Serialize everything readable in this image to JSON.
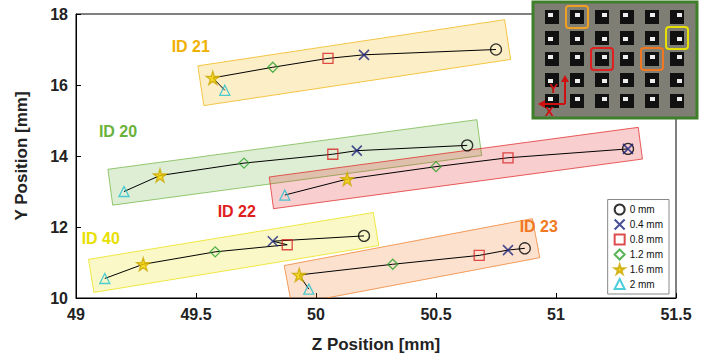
{
  "chart_data": {
    "type": "scatter",
    "x_label": "Z Position [mm]",
    "y_label": "Y Position [mm]",
    "xlim": [
      49,
      51.5
    ],
    "xticks": [
      49,
      49.5,
      50,
      50.5,
      51,
      51.5
    ],
    "ylim": [
      10,
      18
    ],
    "yticks": [
      10,
      12,
      14,
      16,
      18
    ],
    "grid": false,
    "legend": "lower right",
    "markers": [
      {
        "name": "0 mm",
        "marker": "circle",
        "color": "#000000"
      },
      {
        "name": "0.4 mm",
        "marker": "x",
        "color": "#1a237e"
      },
      {
        "name": "0.8 mm",
        "marker": "square",
        "color": "#d62020"
      },
      {
        "name": "1.2 mm",
        "marker": "diamond",
        "color": "#2ca02c"
      },
      {
        "name": "1.6 mm",
        "marker": "star",
        "color": "#f5d300"
      },
      {
        "name": "2 mm",
        "marker": "triangle",
        "color": "#20c0d0"
      }
    ],
    "series": [
      {
        "name": "ID 21",
        "color": "#f0b000",
        "x": [
          50.75,
          50.2,
          50.05,
          49.82,
          49.57,
          49.62
        ],
        "y": [
          17.0,
          16.85,
          16.75,
          16.5,
          16.2,
          15.85
        ]
      },
      {
        "name": "ID 20",
        "color": "#6ab23c",
        "x": [
          50.63,
          50.17,
          50.07,
          49.7,
          49.35,
          49.2
        ],
        "y": [
          14.3,
          14.15,
          14.05,
          13.8,
          13.45,
          13.0
        ]
      },
      {
        "name": "ID 22",
        "color": "#e02020",
        "x": [
          51.3,
          51.3,
          50.8,
          50.5,
          50.13,
          49.87
        ],
        "y": [
          14.2,
          14.2,
          13.95,
          13.7,
          13.35,
          12.9
        ]
      },
      {
        "name": "ID 40",
        "color": "#e8e000",
        "x": [
          50.2,
          49.82,
          49.88,
          49.58,
          49.28,
          49.12
        ],
        "y": [
          11.75,
          11.6,
          11.5,
          11.3,
          10.95,
          10.55
        ]
      },
      {
        "name": "ID 23",
        "color": "#f07820",
        "x": [
          50.87,
          50.8,
          50.68,
          50.32,
          49.93,
          49.97
        ],
        "y": [
          11.4,
          11.35,
          11.2,
          10.95,
          10.65,
          10.25
        ]
      }
    ],
    "inset": {
      "x_label": "X",
      "y_label": "Y"
    }
  }
}
